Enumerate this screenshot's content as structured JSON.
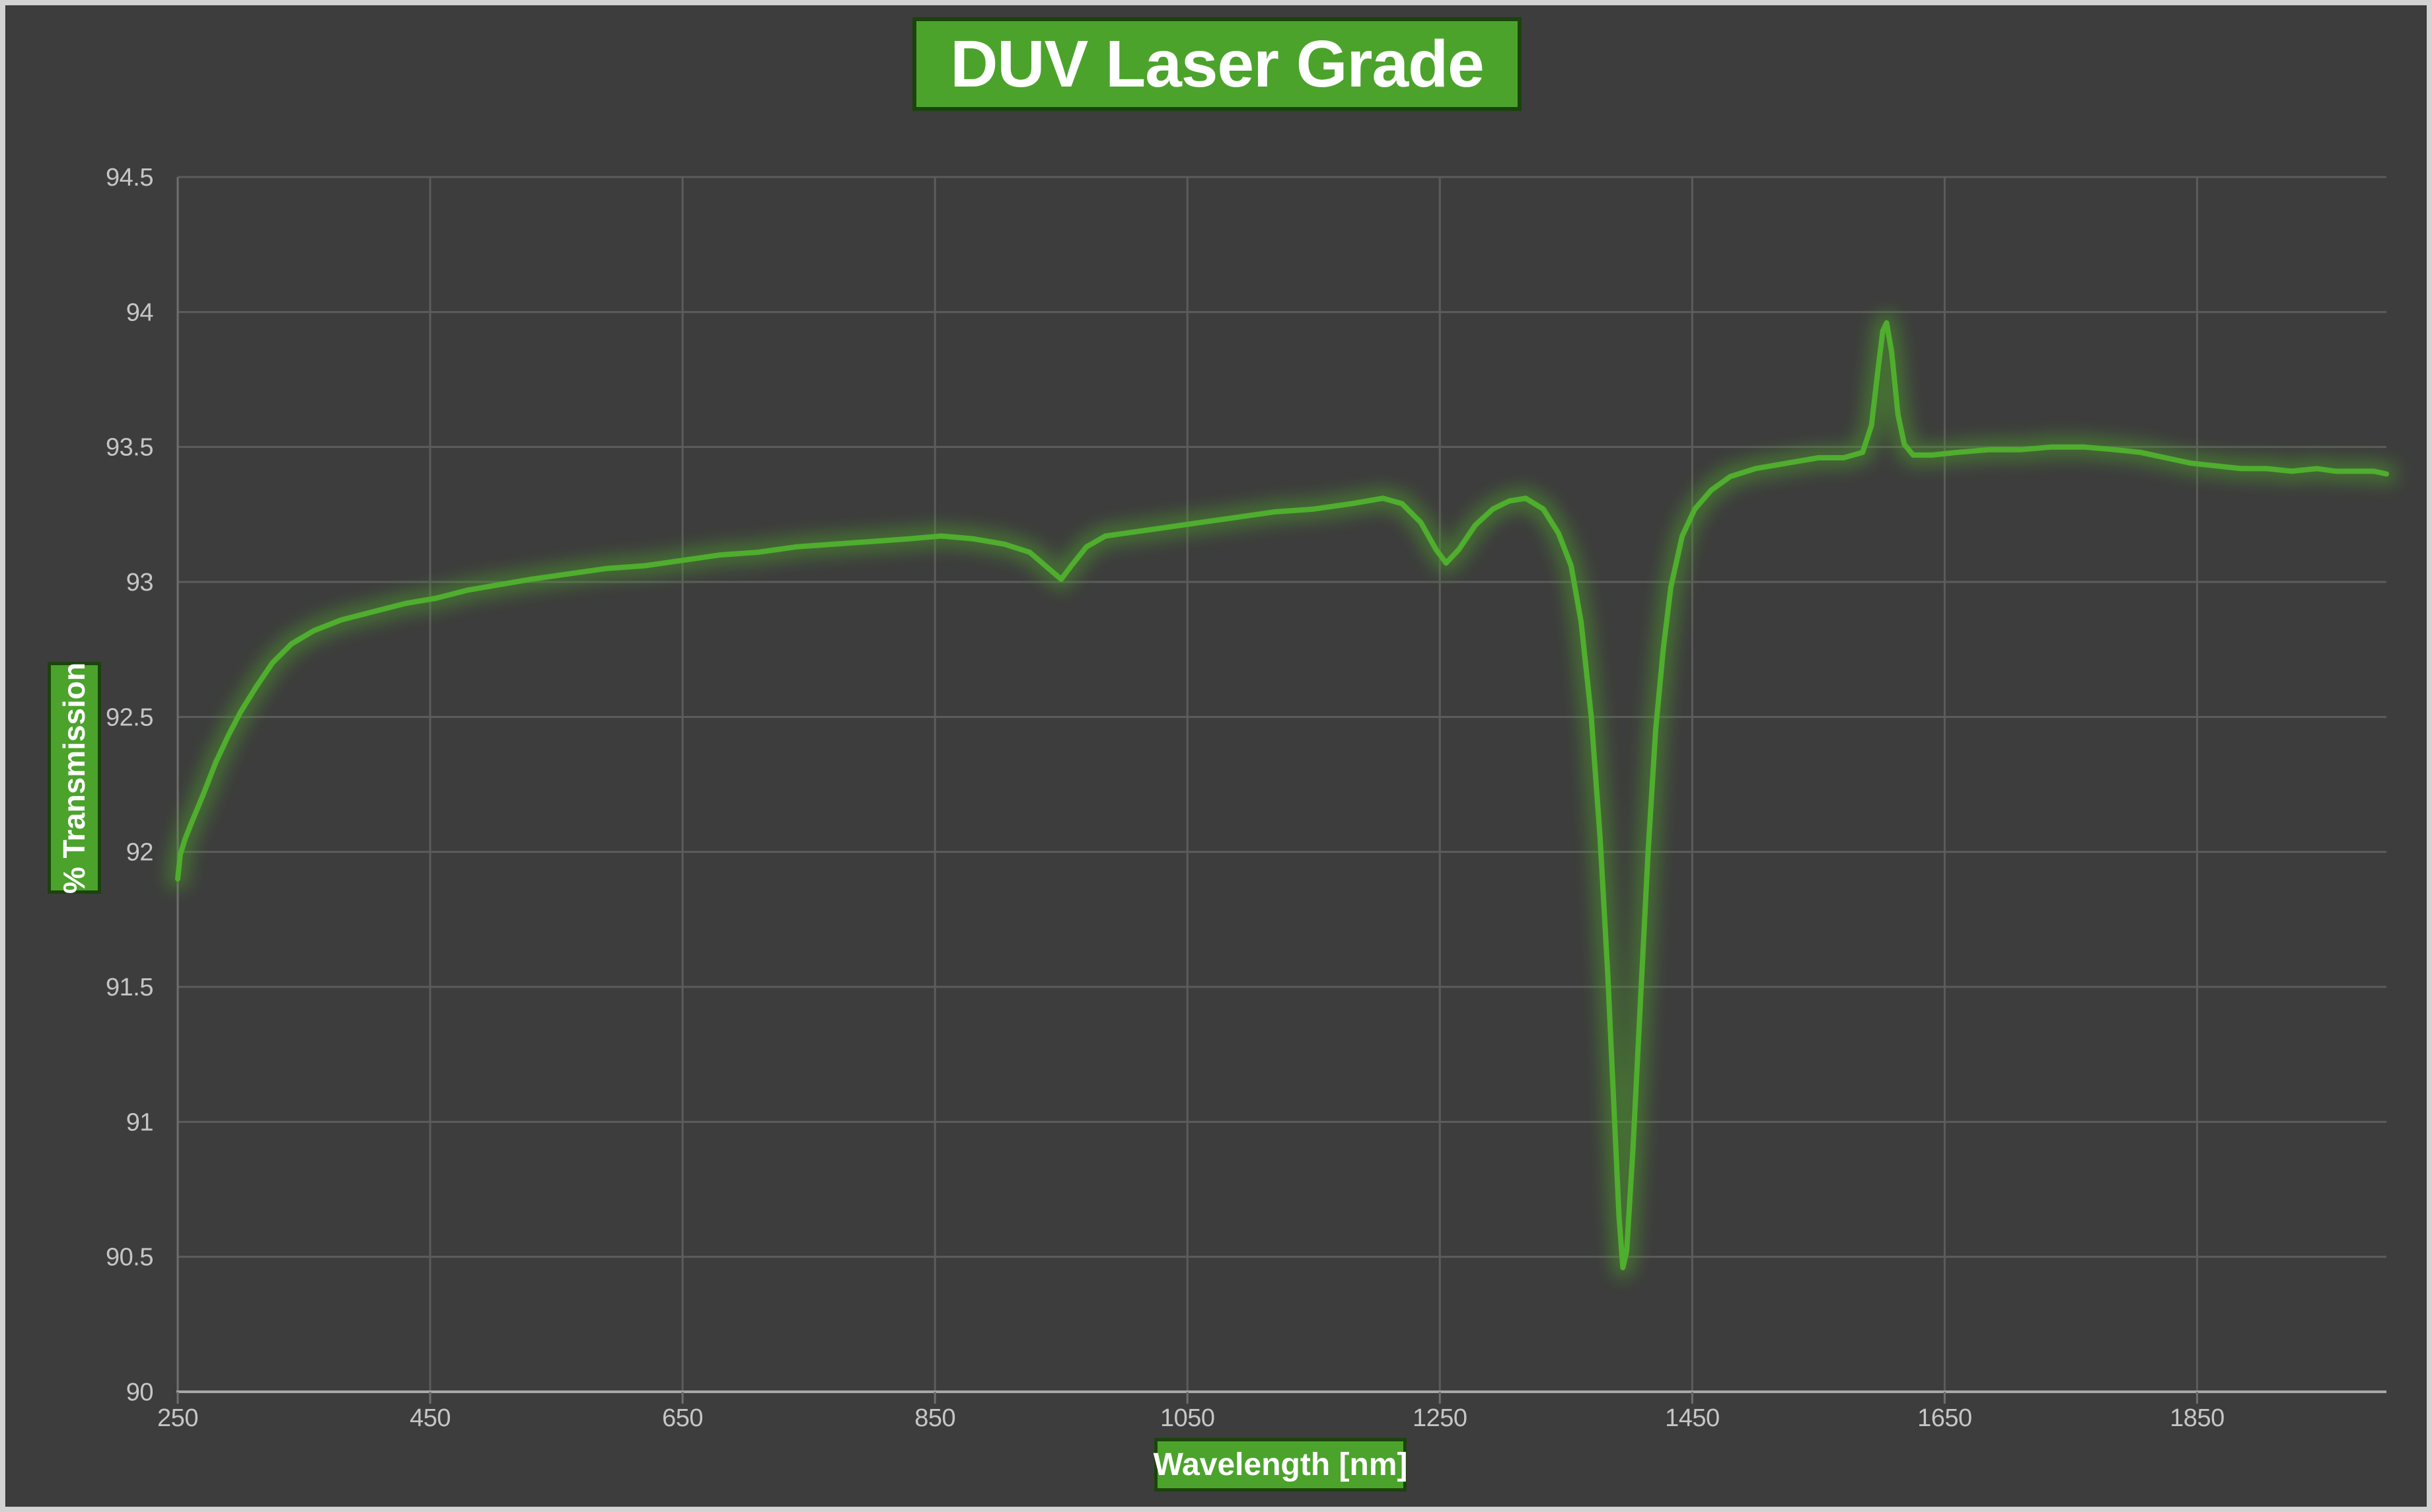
{
  "colors": {
    "background": "#3d3d3d",
    "frame": "#d3d3d3",
    "grid": "#5c5c5c",
    "axis_left": "#6f6f6f",
    "axis_bottom": "#a8a8a8",
    "tick_text": "#c6c6c6",
    "box_fill": "#4ba32c",
    "box_border": "#1b430c",
    "line": "#4fae2d",
    "glow": "#4e9e2b"
  },
  "chart_data": {
    "type": "line",
    "title": "DUV Laser Grade",
    "xlabel": "Wavelength [nm]",
    "ylabel": "% Transmission",
    "xlim": [
      250,
      2000
    ],
    "ylim": [
      90,
      94.5
    ],
    "x_ticks": [
      250,
      450,
      650,
      850,
      1050,
      1250,
      1450,
      1650,
      1850
    ],
    "y_ticks": [
      90,
      90.5,
      91,
      91.5,
      92,
      92.5,
      93,
      93.5,
      94,
      94.5
    ],
    "grid": true,
    "legend": "none",
    "series": [
      {
        "name": "% Transmission",
        "color": "#4fae2d",
        "points": [
          [
            250,
            91.9
          ],
          [
            252,
            91.99
          ],
          [
            256,
            92.05
          ],
          [
            262,
            92.12
          ],
          [
            270,
            92.21
          ],
          [
            280,
            92.33
          ],
          [
            290,
            92.43
          ],
          [
            300,
            92.52
          ],
          [
            312,
            92.61
          ],
          [
            325,
            92.7
          ],
          [
            340,
            92.77
          ],
          [
            358,
            92.82
          ],
          [
            380,
            92.86
          ],
          [
            405,
            92.89
          ],
          [
            430,
            92.92
          ],
          [
            455,
            92.94
          ],
          [
            480,
            92.97
          ],
          [
            505,
            92.99
          ],
          [
            530,
            93.01
          ],
          [
            560,
            93.03
          ],
          [
            590,
            93.05
          ],
          [
            620,
            93.06
          ],
          [
            650,
            93.08
          ],
          [
            680,
            93.1
          ],
          [
            710,
            93.11
          ],
          [
            740,
            93.13
          ],
          [
            770,
            93.14
          ],
          [
            800,
            93.15
          ],
          [
            830,
            93.16
          ],
          [
            855,
            93.17
          ],
          [
            880,
            93.16
          ],
          [
            905,
            93.14
          ],
          [
            925,
            93.11
          ],
          [
            940,
            93.05
          ],
          [
            950,
            93.01
          ],
          [
            958,
            93.06
          ],
          [
            970,
            93.13
          ],
          [
            985,
            93.17
          ],
          [
            1000,
            93.18
          ],
          [
            1030,
            93.2
          ],
          [
            1060,
            93.22
          ],
          [
            1090,
            93.24
          ],
          [
            1120,
            93.26
          ],
          [
            1150,
            93.27
          ],
          [
            1180,
            93.29
          ],
          [
            1205,
            93.31
          ],
          [
            1220,
            93.29
          ],
          [
            1235,
            93.22
          ],
          [
            1247,
            93.12
          ],
          [
            1255,
            93.07
          ],
          [
            1265,
            93.12
          ],
          [
            1278,
            93.21
          ],
          [
            1292,
            93.27
          ],
          [
            1305,
            93.3
          ],
          [
            1318,
            93.31
          ],
          [
            1332,
            93.27
          ],
          [
            1344,
            93.18
          ],
          [
            1354,
            93.06
          ],
          [
            1362,
            92.85
          ],
          [
            1370,
            92.5
          ],
          [
            1377,
            92.05
          ],
          [
            1383,
            91.55
          ],
          [
            1388,
            91.05
          ],
          [
            1392,
            90.65
          ],
          [
            1395,
            90.46
          ],
          [
            1398,
            90.52
          ],
          [
            1403,
            90.9
          ],
          [
            1409,
            91.45
          ],
          [
            1415,
            92.0
          ],
          [
            1421,
            92.45
          ],
          [
            1427,
            92.75
          ],
          [
            1433,
            92.98
          ],
          [
            1442,
            93.17
          ],
          [
            1452,
            93.27
          ],
          [
            1465,
            93.34
          ],
          [
            1480,
            93.39
          ],
          [
            1500,
            93.42
          ],
          [
            1525,
            93.44
          ],
          [
            1550,
            93.46
          ],
          [
            1570,
            93.46
          ],
          [
            1585,
            93.48
          ],
          [
            1592,
            93.58
          ],
          [
            1597,
            93.78
          ],
          [
            1601,
            93.93
          ],
          [
            1604,
            93.96
          ],
          [
            1608,
            93.85
          ],
          [
            1613,
            93.62
          ],
          [
            1618,
            93.51
          ],
          [
            1625,
            93.47
          ],
          [
            1640,
            93.47
          ],
          [
            1660,
            93.48
          ],
          [
            1685,
            93.49
          ],
          [
            1710,
            93.49
          ],
          [
            1735,
            93.5
          ],
          [
            1760,
            93.5
          ],
          [
            1785,
            93.49
          ],
          [
            1805,
            93.48
          ],
          [
            1825,
            93.46
          ],
          [
            1845,
            93.44
          ],
          [
            1865,
            93.43
          ],
          [
            1885,
            93.42
          ],
          [
            1905,
            93.42
          ],
          [
            1925,
            93.41
          ],
          [
            1945,
            93.42
          ],
          [
            1960,
            93.41
          ],
          [
            1975,
            93.41
          ],
          [
            1990,
            93.41
          ],
          [
            2000,
            93.4
          ]
        ]
      }
    ]
  }
}
